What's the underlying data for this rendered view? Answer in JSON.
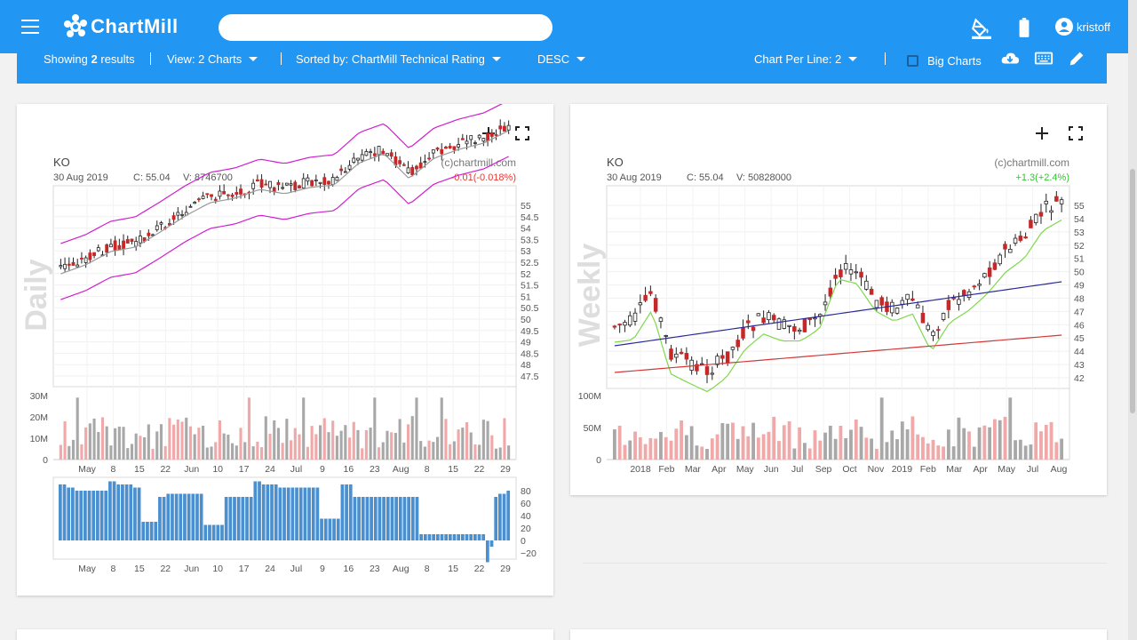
{
  "header": {
    "brand": "ChartMill",
    "search": {
      "value": "",
      "placeholder": ""
    },
    "username": "kristoff"
  },
  "toolbar": {
    "showing_prefix": "Showing",
    "showing_count": "2",
    "showing_suffix": "results",
    "view_label": "View: 2 Charts",
    "sorted_label": "Sorted by: ChartMill Technical Rating",
    "order_label": "DESC",
    "per_line_label": "Chart Per Line: 2",
    "big_charts_label": "Big Charts",
    "big_charts_checked": false
  },
  "charts": [
    {
      "symbol": "KO",
      "period": "Daily",
      "info_date": "30 Aug 2019",
      "info_close": "C: 55.04",
      "info_volume": "V: 8746700",
      "copyright": "(c)chartmill.com",
      "change": "-0.01(-0.018%)",
      "change_color": "#e53935",
      "price_ticks": [
        "55",
        "54.5",
        "54",
        "53.5",
        "53",
        "52.5",
        "52",
        "51.5",
        "51",
        "50.5",
        "50",
        "49.5",
        "49",
        "48.5",
        "48",
        "47.5"
      ],
      "volume_ticks": [
        "30M",
        "20M",
        "10M",
        "0"
      ],
      "x_labels": [
        "May",
        "8",
        "15",
        "22",
        "Jun",
        "10",
        "17",
        "24",
        "Jul",
        "9",
        "16",
        "23",
        "Aug",
        "8",
        "15",
        "22",
        "29"
      ],
      "indicator_ticks": [
        "80",
        "60",
        "40",
        "20",
        "0",
        "−20"
      ],
      "bar_color": "#4a90d0"
    },
    {
      "symbol": "KO",
      "period": "Weekly",
      "info_date": "30 Aug 2019",
      "info_close": "C: 55.04",
      "info_volume": "V: 50828000",
      "copyright": "(c)chartmill.com",
      "change": "+1.3(+2.4%)",
      "change_color": "#34c334",
      "price_ticks": [
        "55",
        "54",
        "53",
        "52",
        "51",
        "50",
        "49",
        "48",
        "47",
        "46",
        "45",
        "44",
        "43",
        "42"
      ],
      "volume_ticks": [
        "100M",
        "50M",
        "0"
      ],
      "x_labels": [
        "2018",
        "Feb",
        "Mar",
        "Apr",
        "May",
        "Jun",
        "Jul",
        "Sep",
        "Oct",
        "Nov",
        "2019",
        "Feb",
        "Mar",
        "Apr",
        "May",
        "Jul",
        "Aug"
      ]
    }
  ],
  "colors": {
    "brand_blue": "#2196f3",
    "candle_up": "#ffffff",
    "candle_down": "#c62828",
    "volume_up": "#a8a8a8",
    "volume_down": "#f0a8a8",
    "bollinger": "#d020d0",
    "ma_short": "#7fd84a",
    "ma_mid": "#2a2a9a",
    "ma_long": "#d23838"
  },
  "icons": [
    "menu-icon",
    "logo-icon",
    "paint-bucket-icon",
    "battery-icon",
    "account-icon",
    "download-icon",
    "keyboard-icon",
    "pencil-icon",
    "plus-icon",
    "fullscreen-icon"
  ]
}
